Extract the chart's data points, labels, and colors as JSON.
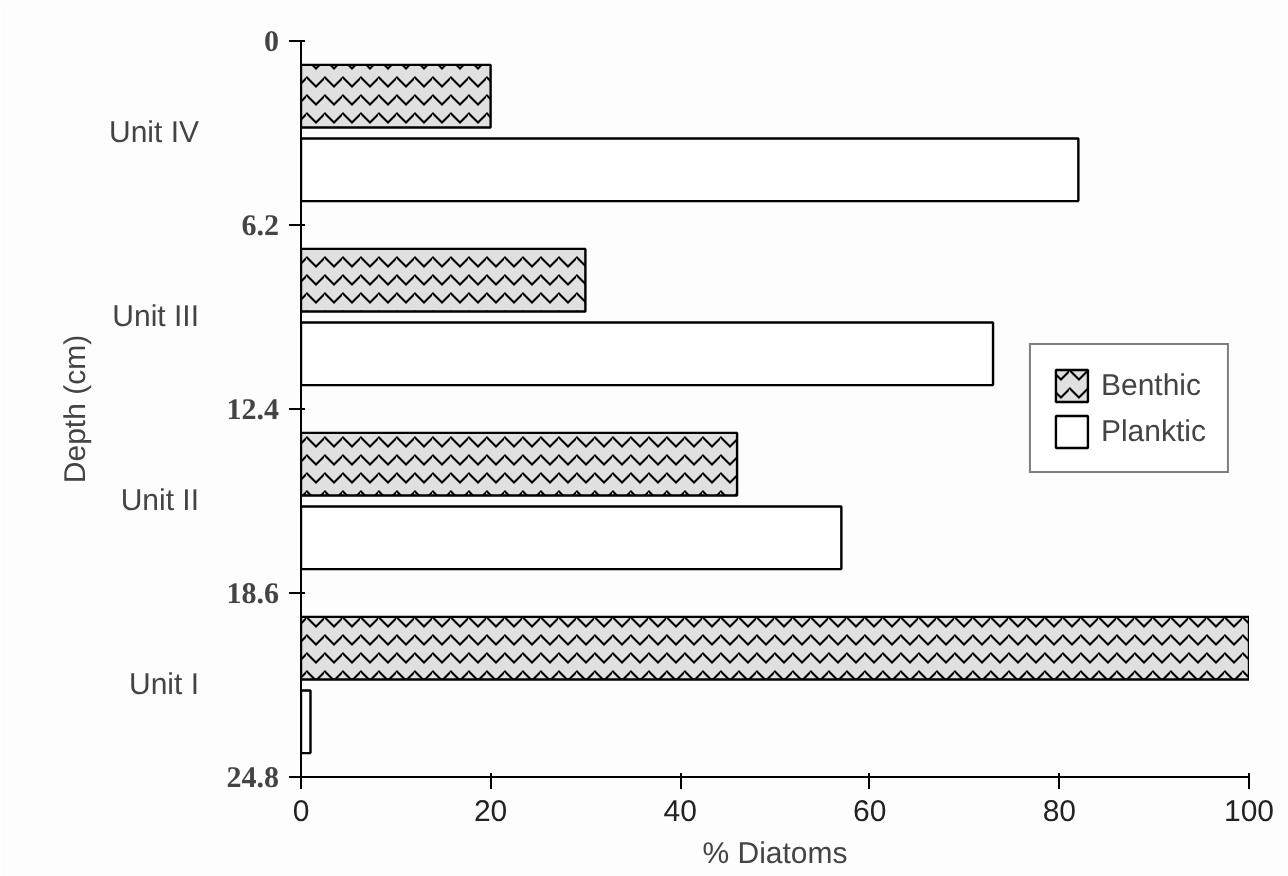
{
  "chart_data": {
    "type": "bar",
    "orientation": "horizontal",
    "xlabel": "% Diatoms",
    "ylabel": "Depth (cm)",
    "categories": [
      "Unit IV",
      "Unit III",
      "Unit II",
      "Unit I"
    ],
    "series": [
      {
        "name": "Benthic",
        "color": "#e0e0e0",
        "values": [
          20,
          30,
          46,
          100
        ]
      },
      {
        "name": "Planktic",
        "color": "#ffffff",
        "values": [
          82,
          73,
          57,
          1
        ]
      }
    ],
    "xlim": [
      0,
      100
    ],
    "xticks": [
      0,
      20,
      40,
      60,
      80,
      100
    ],
    "annotations": [
      "0",
      "6.2",
      "12.4",
      "18.6",
      "24.8"
    ],
    "legend": "right",
    "grid": false
  }
}
